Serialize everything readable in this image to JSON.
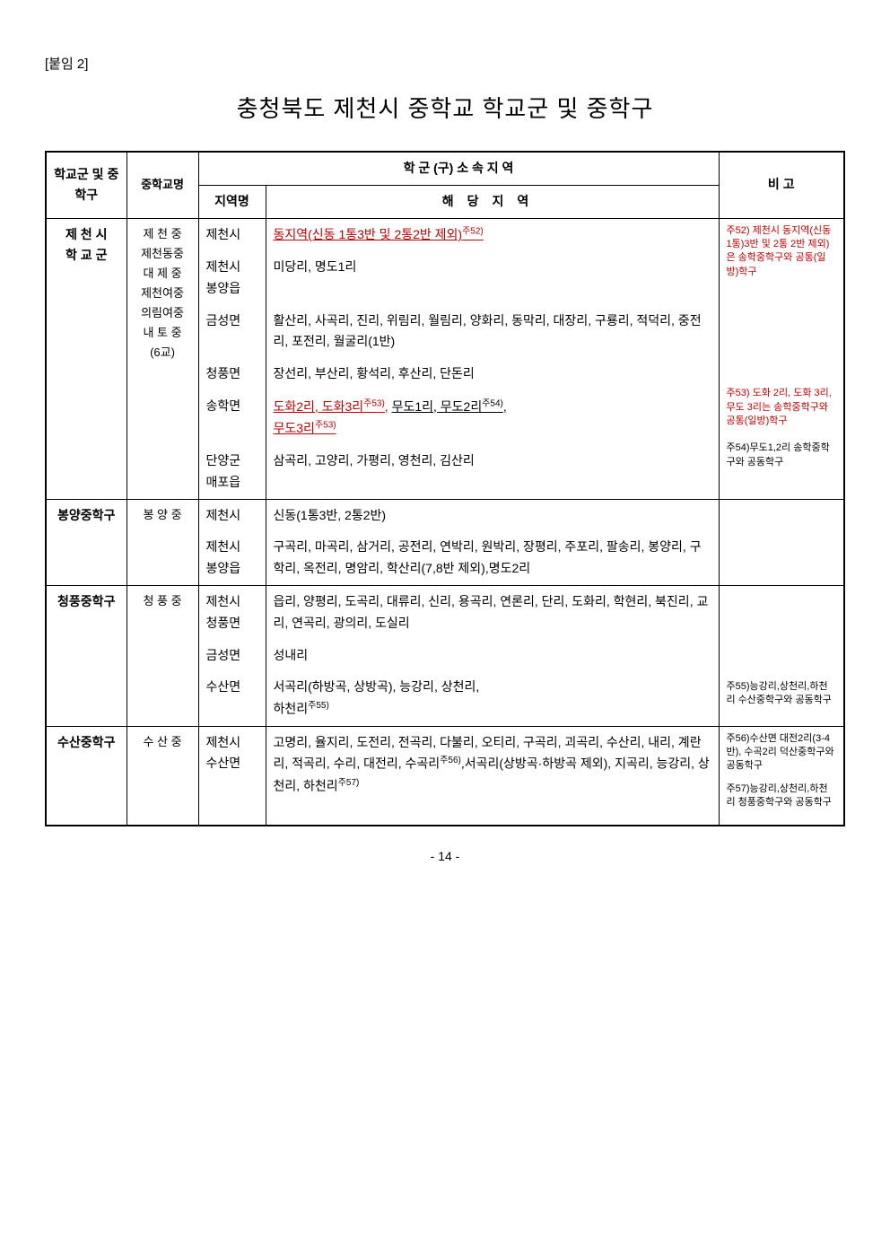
{
  "attachment_label": "[붙임 2]",
  "main_title": "충청북도 제천시 중학교 학교군 및 중학구",
  "headers": {
    "group": "학교군 및 중학구",
    "school": "중학교명",
    "affiliation": "학 군 (구)   소 속 지 역",
    "region": "지역명",
    "area": "해당지역",
    "note": "비   고"
  },
  "rows": [
    {
      "group": "제 천 시\n학 교 군",
      "schools": "제 천 중\n제천동중\n대 제 중\n제천여중\n의림여중\n내 토 중\n(6교)",
      "regions": [
        {
          "name": "제천시",
          "area_html": "<span class='underline-red'>동지역(신동 1통3반 및 2통2반 제외)<span class='sup'>주52)</span></span>"
        },
        {
          "name": "제천시\n봉양읍",
          "area_html": "미당리, 명도1리"
        },
        {
          "name": "금성면",
          "area_html": "활산리, 사곡리, 진리, 위림리, 월림리, 양화리, 동막리, 대장리, 구룡리, 적덕리, 중전리, 포전리, 월굴리(1반)"
        },
        {
          "name": "청풍면",
          "area_html": "장선리, 부산리, 황석리, 후산리, 단돈리"
        },
        {
          "name": "송학면",
          "area_html": "<span class='underline-red'>도화2리, 도화3리<span class='sup'>주53)</span>,</span> <span class='underline'>무도1리, 무도2리<span class='sup'>주54)</span>,</span><br><span class='underline-red'>무도3리<span class='sup red'>주53)</span></span>"
        },
        {
          "name": "단양군\n매포읍",
          "area_html": "삼곡리, 고양리, 가평리, 영천리, 김산리"
        }
      ],
      "notes": [
        {
          "html": "<span class='red'>주52) 제천시 동지역(신동1통)3반 및 2통 2반 제외)은 송학중학구와 공통(일방)학구</span>"
        },
        {
          "html": "<span class='red'>주53) 도화 2리, 도화 3리, 무도 3리는 송학중학구와 공통(일방)학구</span>"
        },
        {
          "html": "주54)무도1,2리 송학중학구와 공동학구"
        }
      ]
    },
    {
      "group": "봉양중학구",
      "schools": "봉 양 중",
      "regions": [
        {
          "name": "제천시",
          "area_html": "신동(1통3반, 2통2반)"
        },
        {
          "name": "제천시\n봉양읍",
          "area_html": "구곡리, 마곡리, 삼거리, 공전리, 연박리, 원박리, 장평리, 주포리, 팔송리, 봉양리, 구학리, 옥전리, 명암리, 학산리(7,8반 제외),명도2리"
        }
      ],
      "notes": []
    },
    {
      "group": "청풍중학구",
      "schools": "청 풍 중",
      "regions": [
        {
          "name": "제천시\n청풍면",
          "area_html": "읍리, 양평리, 도곡리, 대류리, 신리, 용곡리, 연론리, 단리, 도화리, 학현리, 북진리, 교리, 연곡리, 광의리, 도실리"
        },
        {
          "name": "금성면",
          "area_html": "성내리"
        },
        {
          "name": "수산면",
          "area_html": "서곡리(하방곡, 상방곡), 능강리, 상천리,<br>하천리<span class='sup'>주55)</span>"
        }
      ],
      "notes": [
        {
          "html": "주55)능강리,상천리,하천리 수산중학구와 공동학구"
        }
      ]
    },
    {
      "group": "수산중학구",
      "schools": "수 산 중",
      "regions": [
        {
          "name": "제천시\n수산면",
          "area_html": "고명리, 율지리, 도전리, 전곡리, 다불리, 오티리, 구곡리, 괴곡리, 수산리, 내리, 계란리, 적곡리, 수리, 대전리, 수곡리<span class='sup'>주56)</span>,서곡리(상방곡·하방곡 제외), 지곡리, 능강리, 상천리, 하천리<span class='sup'>주57)</span>"
        }
      ],
      "notes": [
        {
          "html": "주56)수산면 대전2리(3-4반), 수곡2리 덕산중학구와 공동학구"
        },
        {
          "html": "주57)능강리,상천리,하천리 청풍중학구와 공동학구"
        }
      ]
    }
  ],
  "page_number": "- 14 -"
}
